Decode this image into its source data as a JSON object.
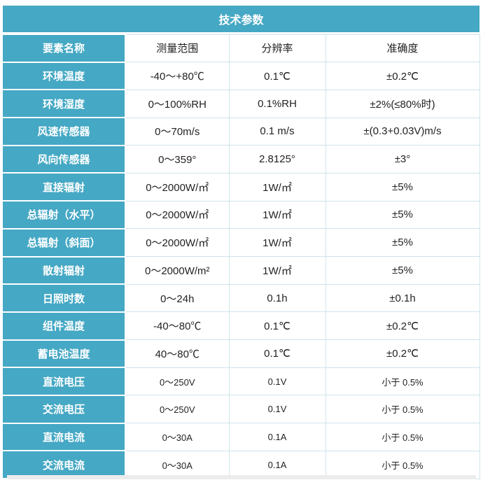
{
  "title": "技术参数",
  "header": {
    "element": "要素名称",
    "range": "测量范围",
    "resolution": "分辨率",
    "accuracy": "准确度"
  },
  "rows": [
    {
      "name": "环境温度",
      "range": "-40～+80℃",
      "resolution": "0.1℃",
      "accuracy": "±0.2℃"
    },
    {
      "name": "环境湿度",
      "range": "0～100%RH",
      "resolution": "0.1%RH",
      "accuracy": "±2%(≤80%时)"
    },
    {
      "name": "风速传感器",
      "range": "0～70m/s",
      "resolution": "0.1 m/s",
      "accuracy": "±(0.3+0.03V)m/s"
    },
    {
      "name": "风向传感器",
      "range": "0～359°",
      "resolution": "2.8125°",
      "accuracy": "±3°"
    },
    {
      "name": "直接辐射",
      "range": "0～2000W/㎡",
      "resolution": "1W/㎡",
      "accuracy": "±5%"
    },
    {
      "name": "总辐射（水平）",
      "range": "0～2000W/㎡",
      "resolution": "1W/㎡",
      "accuracy": "±5%"
    },
    {
      "name": "总辐射（斜面）",
      "range": "0～2000W/㎡",
      "resolution": "1W/㎡",
      "accuracy": "±5%"
    },
    {
      "name": "散射辐射",
      "range": "0～2000W/m²",
      "resolution": "1W/㎡",
      "accuracy": "±5%"
    },
    {
      "name": "日照时数",
      "range": "0～24h",
      "resolution": "0.1h",
      "accuracy": "±0.1h"
    },
    {
      "name": "组件温度",
      "range": "-40～80℃",
      "resolution": "0.1℃",
      "accuracy": "±0.2℃"
    },
    {
      "name": "蓄电池温度",
      "range": "40～80℃",
      "resolution": "0.1℃",
      "accuracy": "±0.2℃"
    },
    {
      "name": "直流电压",
      "range": "0～250V",
      "resolution": "0.1V",
      "accuracy": "小于 0.5%"
    },
    {
      "name": "交流电压",
      "range": "0～250V",
      "resolution": "0.1V",
      "accuracy": "小于 0.5%"
    },
    {
      "name": "直流电流",
      "range": "0～30A",
      "resolution": "0.1A",
      "accuracy": "小于 0.5%"
    },
    {
      "name": "交流电流",
      "range": "0～30A",
      "resolution": "0.1A",
      "accuracy": "小于 0.5%"
    }
  ],
  "colors": {
    "header_bg": "#45a8c4",
    "header_text": "#ffffff",
    "cell_text": "#222222",
    "grid": "#cfe4ec"
  }
}
